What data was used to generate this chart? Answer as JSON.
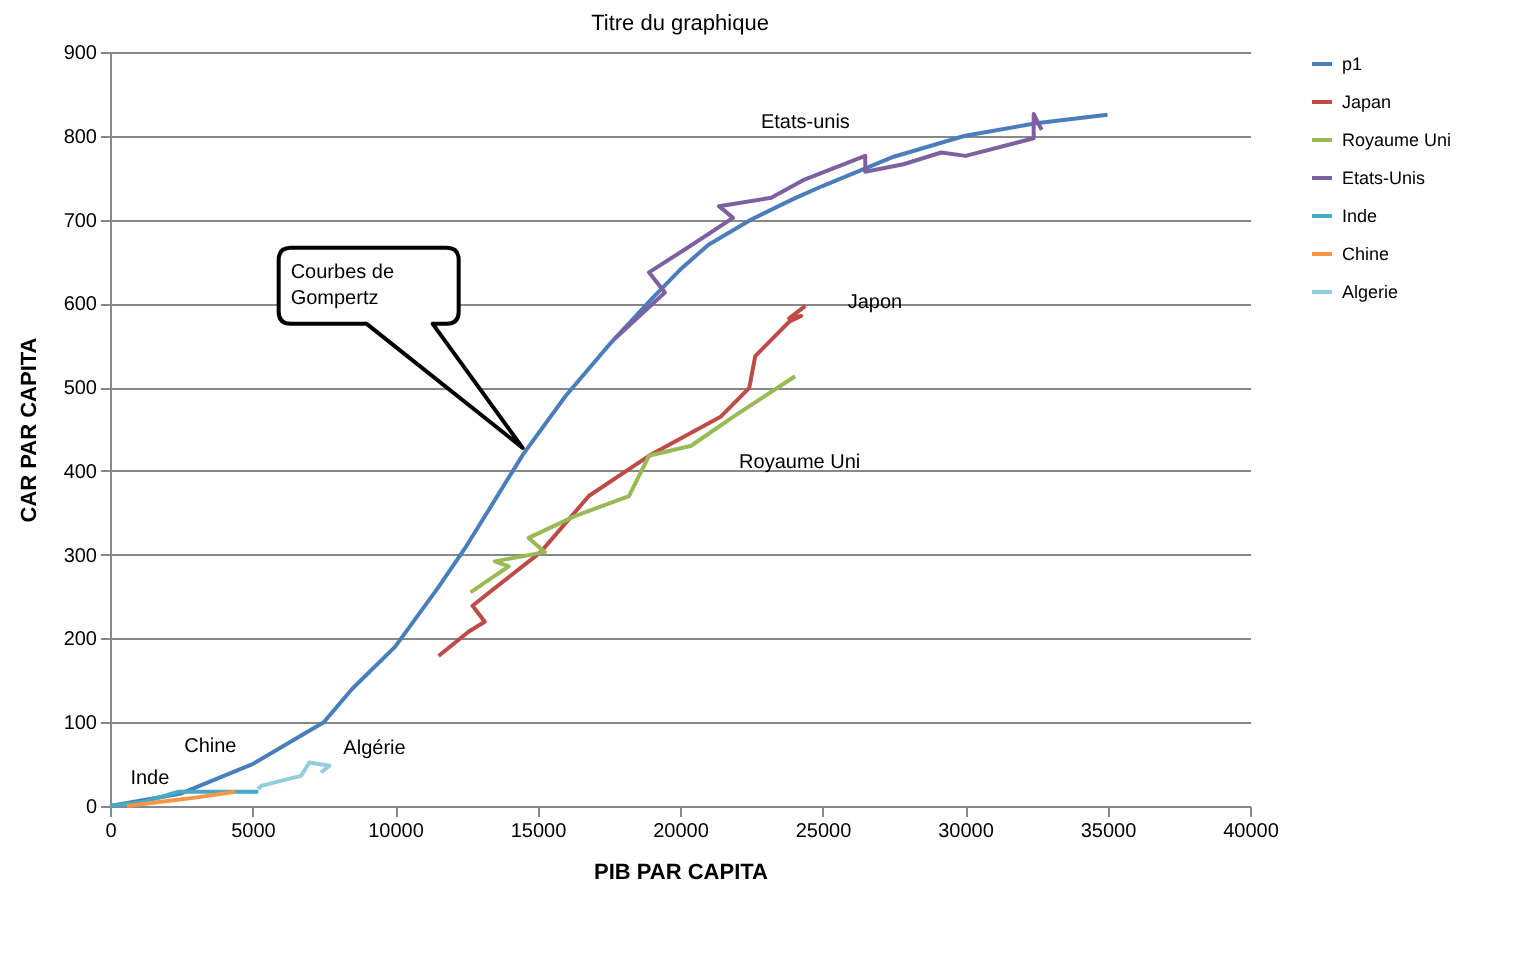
{
  "chart_data": {
    "type": "line",
    "title": "Titre du graphique",
    "xlabel": "PIB PAR CAPITA",
    "ylabel": "CAR PAR CAPITA",
    "xlim": [
      0,
      40000
    ],
    "xticks": [
      0,
      5000,
      10000,
      15000,
      20000,
      25000,
      30000,
      35000,
      40000
    ],
    "ylim": [
      0,
      900
    ],
    "yticks": [
      0,
      100,
      200,
      300,
      400,
      500,
      600,
      700,
      800,
      900
    ],
    "grid": "y",
    "legend": "right",
    "marker": "none",
    "series": [
      {
        "name": "p1",
        "color": "#4a7ebb",
        "x": [
          0,
          2500,
          5000,
          6500,
          7500,
          8500,
          10000,
          11500,
          12500,
          14500,
          16000,
          17500,
          19000,
          20000,
          21000,
          22500,
          24000,
          25000,
          27500,
          30000,
          32500,
          35000
        ],
        "values": [
          0,
          15,
          50,
          80,
          100,
          140,
          190,
          260,
          310,
          420,
          490,
          550,
          605,
          640,
          670,
          700,
          725,
          740,
          775,
          800,
          815,
          825
        ]
      },
      {
        "name": "Japan",
        "color": "#be4b48",
        "x": [
          11530,
          12580,
          13150,
          12720,
          13500,
          15110,
          16800,
          18910,
          21440,
          22430,
          22640,
          23830,
          24250,
          23830,
          24400
        ],
        "values": [
          179,
          208,
          220,
          239,
          260,
          303,
          370,
          418,
          465,
          499,
          537,
          578,
          585,
          582,
          597
        ]
      },
      {
        "name": "Royaume Uni",
        "color": "#98b954",
        "x": [
          12650,
          13990,
          13500,
          15260,
          14690,
          16310,
          18210,
          18910,
          20390,
          21930,
          24040
        ],
        "values": [
          255,
          286,
          292,
          303,
          320,
          346,
          370,
          418,
          430,
          466,
          513
        ]
      },
      {
        "name": "Etats-Unis",
        "color": "#7d60a0",
        "x": [
          17720,
          19470,
          18910,
          20250,
          21860,
          21370,
          23200,
          24320,
          26500,
          26500,
          27840,
          29170,
          30020,
          32410,
          32410,
          32690
        ],
        "values": [
          558,
          613,
          637,
          666,
          702,
          716,
          726,
          747,
          776,
          757,
          766,
          780,
          776,
          797,
          826,
          807
        ]
      },
      {
        "name": "Inde",
        "color": "#46aac5",
        "x": [
          0,
          1200,
          2400,
          3500,
          5200
        ],
        "values": [
          0,
          5,
          17,
          17,
          17
        ]
      },
      {
        "name": "Chine",
        "color": "#f79646",
        "x": [
          600,
          2000,
          3000,
          4400
        ],
        "values": [
          0,
          6,
          10,
          17
        ]
      },
      {
        "name": "Algerie",
        "color": "#93cddd",
        "x": [
          5200,
          5300,
          6700,
          7000,
          7700,
          7400
        ],
        "values": [
          20,
          24,
          36,
          52,
          48,
          40
        ]
      }
    ],
    "annotations": [
      "Courbes de Gompertz",
      "Etats-unis",
      "Japon",
      "Royaume Uni",
      "Chine",
      "Algérie",
      "Inde"
    ]
  }
}
